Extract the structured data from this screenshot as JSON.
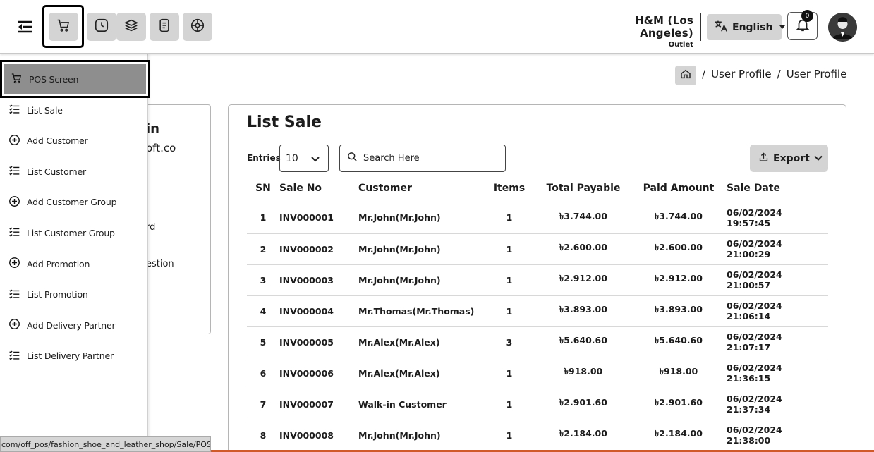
{
  "header": {
    "outlet_name": "H&M (Los Angeles)",
    "outlet_sub": "Outlet",
    "language": "English",
    "notification_count": "0",
    "buttons": [
      "pos-cart",
      "clock",
      "layers",
      "register",
      "target"
    ]
  },
  "breadcrumb": {
    "separator": "/",
    "items": [
      "User Profile",
      "User Profile"
    ]
  },
  "profile_card_fragments": [
    "in",
    "oft.co",
    "rd",
    "estion"
  ],
  "sidebar": {
    "items": [
      {
        "label": "POS Screen",
        "icon": "cart-icon",
        "active": true
      },
      {
        "label": "List Sale",
        "icon": "list-icon"
      },
      {
        "label": "Add Customer",
        "icon": "plus-circle-icon"
      },
      {
        "label": "List Customer",
        "icon": "list-icon"
      },
      {
        "label": "Add Customer Group",
        "icon": "plus-circle-icon"
      },
      {
        "label": "List Customer Group",
        "icon": "list-icon"
      },
      {
        "label": "Add Promotion",
        "icon": "plus-circle-icon"
      },
      {
        "label": "List Promotion",
        "icon": "list-icon"
      },
      {
        "label": "Add Delivery Partner",
        "icon": "plus-circle-icon"
      },
      {
        "label": "List Delivery Partner",
        "icon": "list-icon"
      }
    ]
  },
  "status_bar": "com/off_pos/fashion_shoe_and_leather_shop/Sale/POS",
  "main": {
    "title": "List Sale",
    "entries_label": "Entries",
    "entries_value": "10",
    "search_placeholder": "Search Here",
    "export_label": "Export",
    "columns": [
      "SN",
      "Sale No",
      "Customer",
      "Items",
      "Total Payable",
      "Paid Amount",
      "Sale Date"
    ],
    "rows": [
      [
        "1",
        "INV000001",
        "Mr.John(Mr.John)",
        "1",
        "৳3.744.00",
        "৳3.744.00",
        "06/02/2024 19:57:45"
      ],
      [
        "2",
        "INV000002",
        "Mr.John(Mr.John)",
        "1",
        "৳2.600.00",
        "৳2.600.00",
        "06/02/2024 21:00:29"
      ],
      [
        "3",
        "INV000003",
        "Mr.John(Mr.John)",
        "1",
        "৳2.912.00",
        "৳2.912.00",
        "06/02/2024 21:00:57"
      ],
      [
        "4",
        "INV000004",
        "Mr.Thomas(Mr.Thomas)",
        "1",
        "৳3.893.00",
        "৳3.893.00",
        "06/02/2024 21:06:14"
      ],
      [
        "5",
        "INV000005",
        "Mr.Alex(Mr.Alex)",
        "3",
        "৳5.640.60",
        "৳5.640.60",
        "06/02/2024 21:07:17"
      ],
      [
        "6",
        "INV000006",
        "Mr.Alex(Mr.Alex)",
        "1",
        "৳918.00",
        "৳918.00",
        "06/02/2024 21:36:15"
      ],
      [
        "7",
        "INV000007",
        "Walk-in Customer",
        "1",
        "৳2.901.60",
        "৳2.901.60",
        "06/02/2024 21:37:34"
      ],
      [
        "8",
        "INV000008",
        "Mr.John(Mr.John)",
        "1",
        "৳2.184.00",
        "৳2.184.00",
        "06/02/2024 21:38:00"
      ]
    ]
  },
  "colors": {
    "button_gray": "#d4d4d4",
    "active_item": "#8e8e8e",
    "accent_line": "#d05a2a"
  }
}
